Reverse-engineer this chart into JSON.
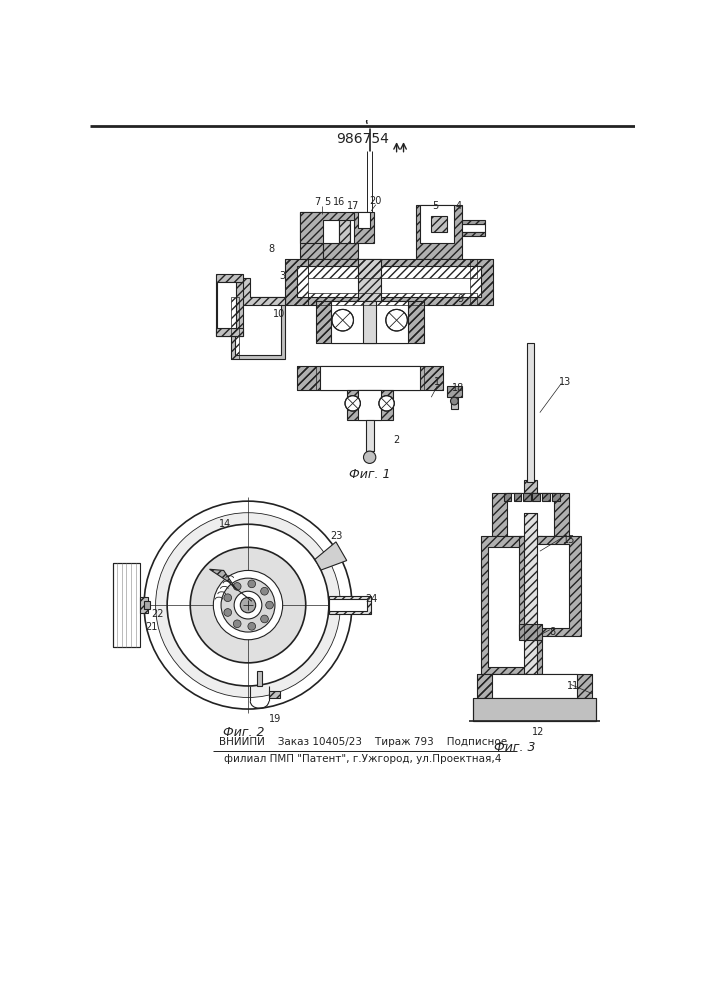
{
  "title": "986754",
  "bottom_text1": "ВНИИПИ    Заказ 10405/23    Тираж 793    Подписное",
  "bottom_text2": "филиал ПМП \"Патент\", г.Ужгород, ул.Проектная,4",
  "fig1_caption": "Фиг. 1",
  "fig2_caption": "Фиг. 2",
  "fig3_caption": "Фиг. 3",
  "bg_color": "#ffffff",
  "line_color": "#222222"
}
